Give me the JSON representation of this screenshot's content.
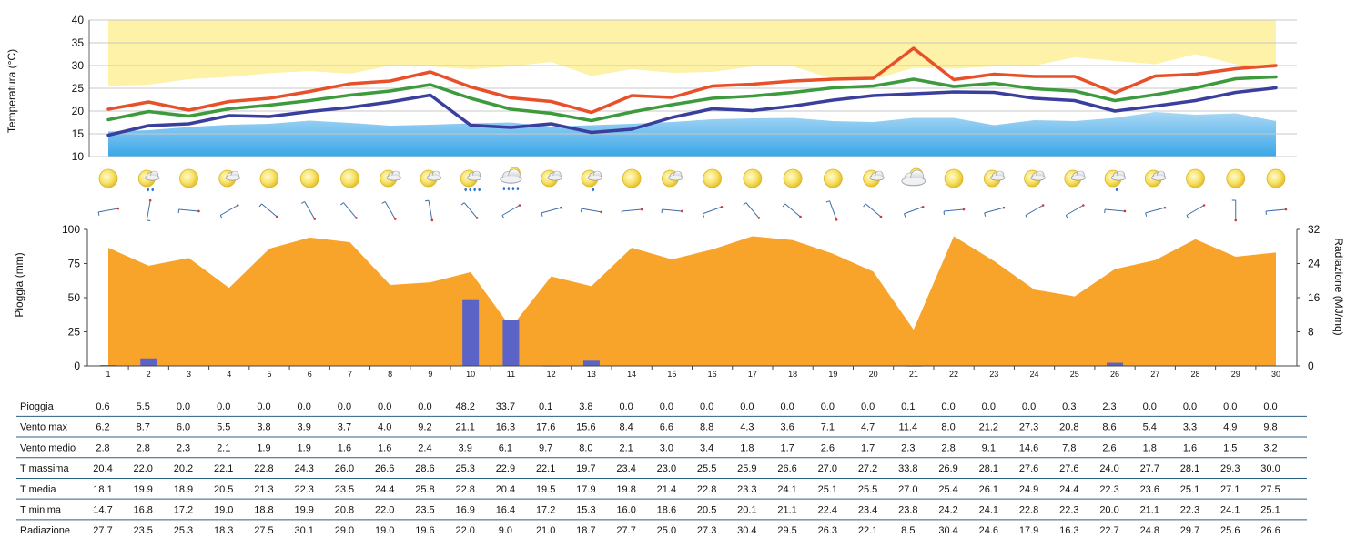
{
  "colors": {
    "temp_max": "#e8502a",
    "temp_mean": "#3d9a3d",
    "temp_min": "#3a3f9e",
    "normal_max_band": "#fdf2a8",
    "normal_min_band_top": "#a9d8f5",
    "normal_min_band_bottom": "#3aa7e8",
    "radiation": "#f8a32a",
    "rain": "#5b63c7",
    "table_line": "#2a5f86"
  },
  "chart_data": [
    {
      "type": "line",
      "ylabel": "Temperatura (°C)",
      "ylim": [
        10,
        40
      ],
      "yticks": [
        10,
        15,
        20,
        25,
        30,
        35,
        40
      ],
      "x": [
        1,
        2,
        3,
        4,
        5,
        6,
        7,
        8,
        9,
        10,
        11,
        12,
        13,
        14,
        15,
        16,
        17,
        18,
        19,
        20,
        21,
        22,
        23,
        24,
        25,
        26,
        27,
        28,
        29,
        30
      ],
      "series": [
        {
          "key": "tmax",
          "values": [
            20.4,
            22.0,
            20.2,
            22.1,
            22.8,
            24.3,
            26.0,
            26.6,
            28.6,
            25.3,
            22.9,
            22.1,
            19.7,
            23.4,
            23.0,
            25.5,
            25.9,
            26.6,
            27.0,
            27.2,
            33.8,
            26.9,
            28.1,
            27.6,
            27.6,
            24.0,
            27.7,
            28.1,
            29.3,
            30.0
          ]
        },
        {
          "key": "tmean",
          "values": [
            18.1,
            19.9,
            18.9,
            20.5,
            21.3,
            22.3,
            23.5,
            24.4,
            25.8,
            22.8,
            20.4,
            19.5,
            17.9,
            19.8,
            21.4,
            22.8,
            23.3,
            24.1,
            25.1,
            25.5,
            27.0,
            25.4,
            26.1,
            24.9,
            24.4,
            22.3,
            23.6,
            25.1,
            27.1,
            27.5
          ]
        },
        {
          "key": "tmin",
          "values": [
            14.7,
            16.8,
            17.2,
            19.0,
            18.8,
            19.9,
            20.8,
            22.0,
            23.5,
            16.9,
            16.4,
            17.2,
            15.3,
            16.0,
            18.6,
            20.5,
            20.1,
            21.1,
            22.4,
            23.4,
            23.8,
            24.2,
            24.1,
            22.8,
            22.3,
            20.0,
            21.1,
            22.3,
            24.1,
            25.1
          ]
        }
      ],
      "normal_max": [
        25.5,
        25.8,
        27.0,
        27.5,
        28.3,
        28.8,
        28.2,
        30.0,
        29.8,
        29.2,
        29.8,
        30.8,
        27.7,
        29.2,
        28.4,
        28.6,
        29.8,
        29.8,
        27.1,
        26.9,
        29.5,
        29.3,
        29.8,
        30.0,
        31.8,
        31.0,
        30.3,
        32.5,
        30.3,
        29.3
      ],
      "normal_min": [
        15.5,
        15.8,
        16.5,
        17.0,
        17.2,
        17.9,
        17.4,
        16.8,
        17.0,
        17.3,
        17.5,
        16.6,
        16.9,
        17.2,
        17.6,
        18.2,
        18.4,
        18.5,
        17.8,
        17.6,
        18.5,
        18.5,
        16.9,
        18.0,
        17.8,
        18.5,
        19.8,
        19.2,
        19.5,
        17.8
      ]
    },
    {
      "type": "bar",
      "ylabel": "Pioggia (mm)",
      "y2label": "Radiazione (MJ/mq)",
      "ylim": [
        0,
        100
      ],
      "yticks": [
        0,
        25,
        50,
        75,
        100
      ],
      "y2lim": [
        0,
        32
      ],
      "y2ticks": [
        0,
        8,
        16,
        24,
        32
      ],
      "categories": [
        "1",
        "2",
        "3",
        "4",
        "5",
        "6",
        "7",
        "8",
        "9",
        "10",
        "11",
        "12",
        "13",
        "14",
        "15",
        "16",
        "17",
        "18",
        "19",
        "20",
        "21",
        "22",
        "23",
        "24",
        "25",
        "26",
        "27",
        "28",
        "29",
        "30"
      ],
      "rain": [
        0.6,
        5.5,
        0.0,
        0.0,
        0.0,
        0.0,
        0.0,
        0.0,
        0.0,
        48.2,
        33.7,
        0.1,
        3.8,
        0.0,
        0.0,
        0.0,
        0.0,
        0.0,
        0.0,
        0.0,
        0.1,
        0.0,
        0.0,
        0.0,
        0.3,
        2.3,
        0.0,
        0.0,
        0.0,
        0.0
      ],
      "radiation": [
        27.7,
        23.5,
        25.3,
        18.3,
        27.5,
        30.1,
        29.0,
        19.0,
        19.6,
        22.0,
        9.0,
        21.0,
        18.7,
        27.7,
        25.0,
        27.3,
        30.4,
        29.5,
        26.3,
        22.1,
        8.5,
        30.4,
        24.6,
        17.9,
        16.3,
        22.7,
        24.8,
        29.7,
        25.6,
        26.6
      ]
    }
  ],
  "weather_icons": [
    "sun-icon",
    "sun-cloud-rain-icon",
    "sun-icon",
    "sun-cloud-icon",
    "sun-icon",
    "sun-icon",
    "sun-icon",
    "sun-cloud-icon",
    "sun-cloud-icon",
    "sun-cloud-heavy-rain-icon",
    "cloud-heavy-rain-icon",
    "sun-cloud-icon",
    "sun-cloud-light-rain-icon",
    "sun-icon",
    "sun-cloud-icon",
    "sun-icon",
    "sun-icon",
    "sun-icon",
    "sun-icon",
    "sun-cloud-icon",
    "cloud-icon",
    "sun-icon",
    "sun-cloud-icon",
    "sun-cloud-icon",
    "sun-cloud-icon",
    "sun-cloud-light-rain-icon",
    "sun-cloud-icon",
    "sun-icon",
    "sun-icon",
    "sun-icon"
  ],
  "wind_dir_deg": [
    80,
    10,
    95,
    60,
    130,
    150,
    140,
    150,
    170,
    140,
    60,
    75,
    100,
    85,
    95,
    70,
    140,
    130,
    160,
    130,
    70,
    85,
    75,
    60,
    60,
    95,
    75,
    60,
    180,
    85
  ],
  "table": {
    "rows": [
      {
        "label": "Pioggia",
        "values": [
          "0.6",
          "5.5",
          "0.0",
          "0.0",
          "0.0",
          "0.0",
          "0.0",
          "0.0",
          "0.0",
          "48.2",
          "33.7",
          "0.1",
          "3.8",
          "0.0",
          "0.0",
          "0.0",
          "0.0",
          "0.0",
          "0.0",
          "0.0",
          "0.1",
          "0.0",
          "0.0",
          "0.0",
          "0.3",
          "2.3",
          "0.0",
          "0.0",
          "0.0",
          "0.0"
        ]
      },
      {
        "label": "Vento max",
        "values": [
          "6.2",
          "8.7",
          "6.0",
          "5.5",
          "3.8",
          "3.9",
          "3.7",
          "4.0",
          "9.2",
          "21.1",
          "16.3",
          "17.6",
          "15.6",
          "8.4",
          "6.6",
          "8.8",
          "4.3",
          "3.6",
          "7.1",
          "4.7",
          "11.4",
          "8.0",
          "21.2",
          "27.3",
          "20.8",
          "8.6",
          "5.4",
          "3.3",
          "4.9",
          "9.8"
        ]
      },
      {
        "label": "Vento medio",
        "values": [
          "2.8",
          "2.8",
          "2.3",
          "2.1",
          "1.9",
          "1.9",
          "1.6",
          "1.6",
          "2.4",
          "3.9",
          "6.1",
          "9.7",
          "8.0",
          "2.1",
          "3.0",
          "3.4",
          "1.8",
          "1.7",
          "2.6",
          "1.7",
          "2.3",
          "2.8",
          "9.1",
          "14.6",
          "7.8",
          "2.6",
          "1.8",
          "1.6",
          "1.5",
          "3.2"
        ]
      },
      {
        "label": "T massima",
        "values": [
          "20.4",
          "22.0",
          "20.2",
          "22.1",
          "22.8",
          "24.3",
          "26.0",
          "26.6",
          "28.6",
          "25.3",
          "22.9",
          "22.1",
          "19.7",
          "23.4",
          "23.0",
          "25.5",
          "25.9",
          "26.6",
          "27.0",
          "27.2",
          "33.8",
          "26.9",
          "28.1",
          "27.6",
          "27.6",
          "24.0",
          "27.7",
          "28.1",
          "29.3",
          "30.0"
        ]
      },
      {
        "label": "T media",
        "values": [
          "18.1",
          "19.9",
          "18.9",
          "20.5",
          "21.3",
          "22.3",
          "23.5",
          "24.4",
          "25.8",
          "22.8",
          "20.4",
          "19.5",
          "17.9",
          "19.8",
          "21.4",
          "22.8",
          "23.3",
          "24.1",
          "25.1",
          "25.5",
          "27.0",
          "25.4",
          "26.1",
          "24.9",
          "24.4",
          "22.3",
          "23.6",
          "25.1",
          "27.1",
          "27.5"
        ]
      },
      {
        "label": "T minima",
        "values": [
          "14.7",
          "16.8",
          "17.2",
          "19.0",
          "18.8",
          "19.9",
          "20.8",
          "22.0",
          "23.5",
          "16.9",
          "16.4",
          "17.2",
          "15.3",
          "16.0",
          "18.6",
          "20.5",
          "20.1",
          "21.1",
          "22.4",
          "23.4",
          "23.8",
          "24.2",
          "24.1",
          "22.8",
          "22.3",
          "20.0",
          "21.1",
          "22.3",
          "24.1",
          "25.1"
        ]
      },
      {
        "label": "Radiazione",
        "values": [
          "27.7",
          "23.5",
          "25.3",
          "18.3",
          "27.5",
          "30.1",
          "29.0",
          "19.0",
          "19.6",
          "22.0",
          "9.0",
          "21.0",
          "18.7",
          "27.7",
          "25.0",
          "27.3",
          "30.4",
          "29.5",
          "26.3",
          "22.1",
          "8.5",
          "30.4",
          "24.6",
          "17.9",
          "16.3",
          "22.7",
          "24.8",
          "29.7",
          "25.6",
          "26.6"
        ]
      }
    ]
  }
}
